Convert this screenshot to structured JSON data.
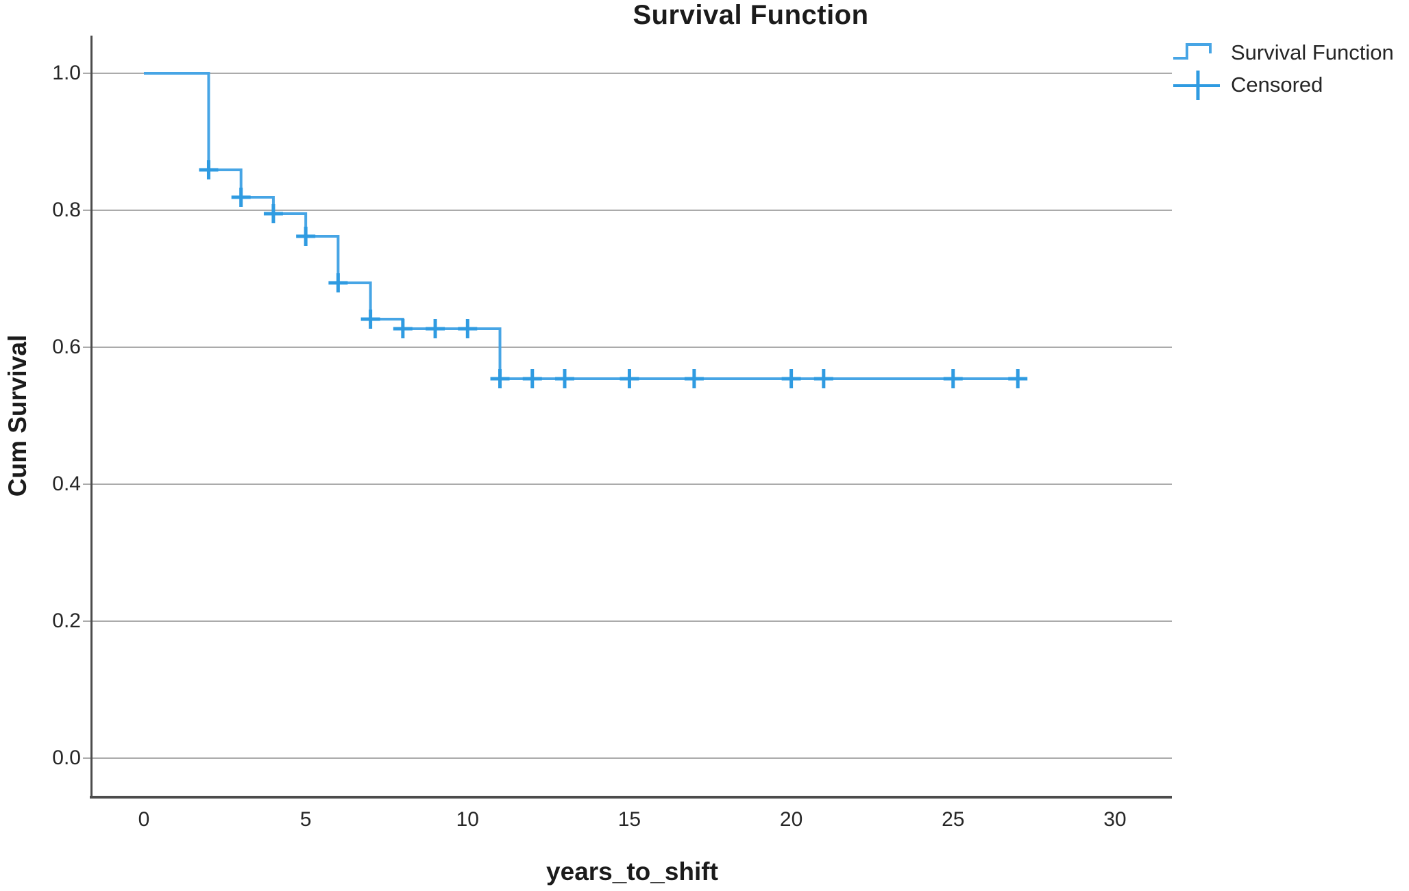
{
  "page": {
    "background": "#FFFFFF"
  },
  "legend": {
    "position": "top-right",
    "items": [
      {
        "label": "Survival Function",
        "icon": "step-line-icon"
      },
      {
        "label": "Censored",
        "icon": "plus-marker-icon"
      }
    ]
  },
  "chart_data": {
    "type": "line",
    "subtype": "kaplan_meier_step_function",
    "title": "Survival Function",
    "xlabel": "years_to_shift",
    "ylabel": "Cum Survival",
    "x_ticks": [
      {
        "value": 0,
        "label": "0"
      },
      {
        "value": 5,
        "label": "5"
      },
      {
        "value": 10,
        "label": "10"
      },
      {
        "value": 15,
        "label": "15"
      },
      {
        "value": 20,
        "label": "20"
      },
      {
        "value": 25,
        "label": "25"
      },
      {
        "value": 30,
        "label": "30"
      }
    ],
    "y_ticks": [
      {
        "value": 0.0,
        "label": "0.0"
      },
      {
        "value": 0.2,
        "label": "0.2"
      },
      {
        "value": 0.4,
        "label": "0.4"
      },
      {
        "value": 0.6,
        "label": "0.6"
      },
      {
        "value": 0.8,
        "label": "0.8"
      },
      {
        "value": 1.0,
        "label": "1.0"
      }
    ],
    "x_axis_range": [
      -1.6,
      31.8
    ],
    "y_axis_range": [
      -0.055,
      1.055
    ],
    "grid": "horizontal-only",
    "legend_position": "top-right",
    "series": [
      {
        "name": "Survival Function",
        "style": "step",
        "color": "#47A5E5",
        "steps": [
          [
            0,
            1.0
          ],
          [
            2,
            0.859
          ],
          [
            3,
            0.819
          ],
          [
            4,
            0.795
          ],
          [
            5,
            0.762
          ],
          [
            6,
            0.694
          ],
          [
            7,
            0.641
          ],
          [
            8,
            0.627
          ],
          [
            11,
            0.554
          ]
        ],
        "end_time": 27
      }
    ],
    "censored": {
      "name": "Censored",
      "marker": "plus",
      "color": "#2F9BE1",
      "points": [
        [
          2,
          0.859
        ],
        [
          3,
          0.819
        ],
        [
          4,
          0.795
        ],
        [
          5,
          0.762
        ],
        [
          6,
          0.694
        ],
        [
          7,
          0.641
        ],
        [
          8,
          0.627
        ],
        [
          9,
          0.627
        ],
        [
          10,
          0.627
        ],
        [
          11,
          0.554
        ],
        [
          12,
          0.554
        ],
        [
          13,
          0.554
        ],
        [
          15,
          0.554
        ],
        [
          17,
          0.554
        ],
        [
          20,
          0.554
        ],
        [
          21,
          0.554
        ],
        [
          25,
          0.554
        ],
        [
          27,
          0.554
        ]
      ]
    },
    "colors": {
      "grid": "#ABABAB",
      "axis": "#4C4C4C",
      "text": "#262626"
    }
  }
}
